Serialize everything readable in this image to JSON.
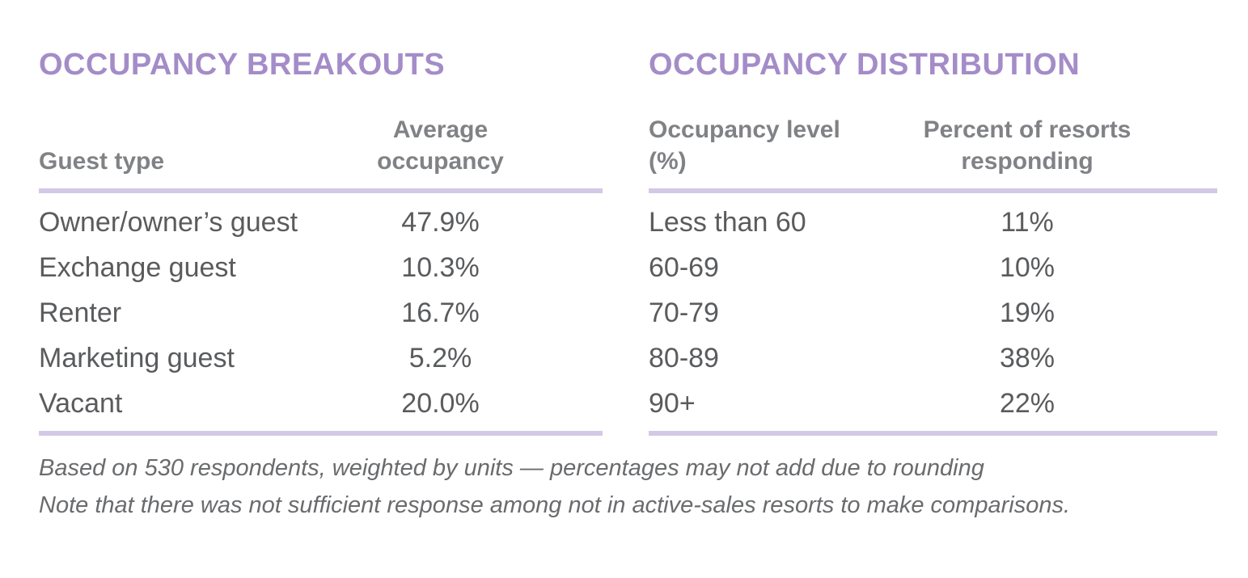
{
  "colors": {
    "title_purple": "#a48cc8",
    "rule_lavender": "#d3c9e6",
    "header_gray": "#808285",
    "body_gray": "#5a5b5d",
    "footnote_gray": "#6a6b6d",
    "background": "#ffffff"
  },
  "chart_data": [
    {
      "type": "table",
      "title": "OCCUPANCY BREAKOUTS",
      "columns": [
        "Guest type",
        "Average occupancy"
      ],
      "rows": [
        {
          "label": "Owner/owner’s guest",
          "value": "47.9%"
        },
        {
          "label": "Exchange guest",
          "value": "10.3%"
        },
        {
          "label": "Renter",
          "value": "16.7%"
        },
        {
          "label": "Marketing guest",
          "value": "5.2%"
        },
        {
          "label": "Vacant",
          "value": "20.0%"
        }
      ],
      "values": [
        47.9,
        10.3,
        16.7,
        5.2,
        20.0
      ]
    },
    {
      "type": "table",
      "title": "OCCUPANCY DISTRIBUTION",
      "columns": [
        "Occupancy level (%)",
        "Percent of resorts responding"
      ],
      "rows": [
        {
          "label": "Less than 60",
          "value": "11%"
        },
        {
          "label": "60-69",
          "value": "10%"
        },
        {
          "label": "70-79",
          "value": "19%"
        },
        {
          "label": "80-89",
          "value": "38%"
        },
        {
          "label": "90+",
          "value": "22%"
        }
      ],
      "values": [
        11,
        10,
        19,
        38,
        22
      ]
    }
  ],
  "footnotes": {
    "line1": "Based on 530 respondents, weighted by units — percentages may not add due to rounding",
    "line2": "Note that there was not sufficient response among not in active-sales resorts to make comparisons."
  }
}
